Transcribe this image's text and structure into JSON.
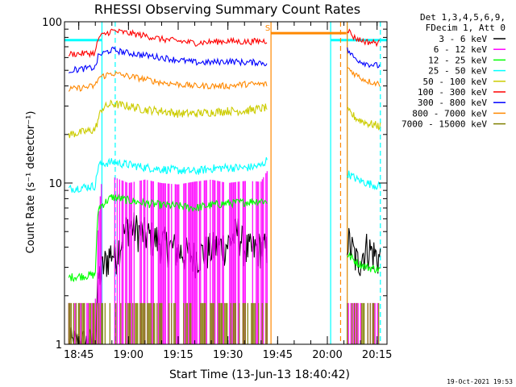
{
  "chart_data": {
    "type": "line",
    "title": "RHESSI Observing Summary Count Rates",
    "xlabel": "Start Time (13-Jun-13 18:40:42)",
    "ylabel": "Count Rate (s⁻¹ detector⁻¹)",
    "yscale": "log",
    "ylim": [
      1,
      100
    ],
    "xlim": [
      "18:40:42",
      "20:18:00"
    ],
    "x_ticks": [
      "18:45",
      "19:00",
      "19:15",
      "19:30",
      "19:45",
      "20:00",
      "20:15"
    ],
    "y_ticks": [
      "1",
      "10",
      "100"
    ],
    "legend": {
      "position": "top-right",
      "header": [
        "Det 1,3,4,5,6,9,",
        "FDecim 1, Att 0"
      ]
    },
    "series": [
      {
        "name": "3 - 6 keV",
        "color": "#000000",
        "segments": [
          {
            "t": [
              "18:42",
              "18:50",
              "18:51",
              "18:55",
              "18:56",
              "19:00",
              "19:05",
              "19:10",
              "19:15",
              "19:20",
              "19:25",
              "19:30",
              "19:33",
              "19:35",
              "19:37",
              "19:40",
              "19:42"
            ],
            "y": [
              1.0,
              1.0,
              2.6,
              3.8,
              3.5,
              5.5,
              4.8,
              4.3,
              3.8,
              3.5,
              3.9,
              4.2,
              5.0,
              4.0,
              3.8,
              4.0,
              3.8
            ]
          },
          {
            "t": [
              "20:06",
              "20:09",
              "20:12",
              "20:15",
              "20:16"
            ],
            "y": [
              4.5,
              3.2,
              4.0,
              3.5,
              3.4
            ]
          }
        ]
      },
      {
        "name": "6 - 12 keV",
        "color": "#ff00ff",
        "segments": [
          {
            "t": [
              "18:42",
              "18:49",
              "18:50",
              "18:52",
              "18:55",
              "19:00",
              "19:05",
              "19:10",
              "19:15",
              "19:20",
              "19:25",
              "19:30",
              "19:35",
              "19:40",
              "19:42"
            ],
            "y": [
              1.8,
              1.8,
              1.8,
              10.5,
              11.0,
              10.0,
              10.5,
              10.0,
              9.8,
              10.2,
              10.5,
              10.0,
              10.3,
              10.2,
              12.0
            ]
          },
          {
            "t": [
              "20:06",
              "20:16"
            ],
            "y": [
              1.8,
              1.8
            ]
          }
        ]
      },
      {
        "name": "12 - 25 keV",
        "color": "#00ff00",
        "segments": [
          {
            "t": [
              "18:42",
              "18:50",
              "18:51",
              "18:55",
              "19:00",
              "19:05",
              "19:10",
              "19:15",
              "19:20",
              "19:25",
              "19:30",
              "19:35",
              "19:40",
              "19:42"
            ],
            "y": [
              2.6,
              2.7,
              7.0,
              8.2,
              7.8,
              7.5,
              7.3,
              7.2,
              7.0,
              7.3,
              7.5,
              7.6,
              7.8,
              7.6
            ]
          },
          {
            "t": [
              "20:06",
              "20:09",
              "20:12",
              "20:16"
            ],
            "y": [
              3.6,
              3.2,
              3.0,
              2.9
            ]
          }
        ]
      },
      {
        "name": "25 - 50 keV",
        "color": "#00ffff",
        "segments": [
          {
            "t": [
              "18:42",
              "18:50",
              "18:51",
              "18:55",
              "19:00",
              "19:05",
              "19:10",
              "19:15",
              "19:20",
              "19:25",
              "19:30",
              "19:35",
              "19:40",
              "19:42"
            ],
            "y": [
              9.2,
              9.6,
              13.0,
              13.5,
              13.0,
              12.5,
              12.2,
              12.0,
              11.8,
              12.3,
              12.5,
              12.4,
              12.8,
              14.0
            ]
          },
          {
            "t": [
              "20:06",
              "20:09",
              "20:12",
              "20:16"
            ],
            "y": [
              11.5,
              10.5,
              10.0,
              9.5
            ]
          }
        ]
      },
      {
        "name": "50 - 100 keV",
        "color": "#cccc00",
        "segments": [
          {
            "t": [
              "18:42",
              "18:48",
              "18:50",
              "18:52",
              "18:55",
              "19:00",
              "19:05",
              "19:10",
              "19:15",
              "19:20",
              "19:25",
              "19:30",
              "19:35",
              "19:40",
              "19:42"
            ],
            "y": [
              20.0,
              21.0,
              21.5,
              29.0,
              31.0,
              30.0,
              28.5,
              28.0,
              27.0,
              27.0,
              27.5,
              28.0,
              28.0,
              29.0,
              29.5
            ]
          },
          {
            "t": [
              "20:06",
              "20:09",
              "20:12",
              "20:16"
            ],
            "y": [
              28.0,
              25.0,
              23.5,
              22.5
            ]
          }
        ]
      },
      {
        "name": "100 - 300 keV",
        "color": "#ff0000",
        "segments": [
          {
            "t": [
              "18:42",
              "18:50",
              "18:51",
              "18:55",
              "19:00",
              "19:05",
              "19:10",
              "19:15",
              "19:20",
              "19:25",
              "19:30",
              "19:35",
              "19:40",
              "19:42"
            ],
            "y": [
              63.0,
              64.0,
              80.0,
              88.0,
              85.0,
              82.0,
              78.0,
              76.0,
              74.0,
              75.0,
              76.0,
              75.0,
              76.0,
              76.0
            ]
          },
          {
            "t": [
              "20:06",
              "20:08",
              "20:10",
              "20:12",
              "20:16"
            ],
            "y": [
              90.0,
              80.0,
              77.0,
              75.0,
              74.0
            ]
          }
        ]
      },
      {
        "name": "300 - 800 keV",
        "color": "#0000ff",
        "segments": [
          {
            "t": [
              "18:42",
              "18:50",
              "18:51",
              "18:55",
              "19:00",
              "19:05",
              "19:10",
              "19:15",
              "19:20",
              "19:25",
              "19:30",
              "19:35",
              "19:40",
              "19:42"
            ],
            "y": [
              50.0,
              52.0,
              62.0,
              67.0,
              64.0,
              62.0,
              60.0,
              58.0,
              56.0,
              56.0,
              57.0,
              56.0,
              56.0,
              55.0
            ]
          },
          {
            "t": [
              "20:06",
              "20:08",
              "20:10",
              "20:12",
              "20:16"
            ],
            "y": [
              67.0,
              60.0,
              57.0,
              55.0,
              53.0
            ]
          }
        ]
      },
      {
        "name": "800 - 7000 keV",
        "color": "#ff8800",
        "segments": [
          {
            "t": [
              "18:42",
              "18:50",
              "18:51",
              "18:55",
              "19:00",
              "19:05",
              "19:10",
              "19:15",
              "19:20",
              "19:25",
              "19:30",
              "19:35",
              "19:40",
              "19:42"
            ],
            "y": [
              38.0,
              40.0,
              45.0,
              48.0,
              46.0,
              44.0,
              42.0,
              41.0,
              40.0,
              40.0,
              40.0,
              41.0,
              41.0,
              41.0
            ]
          },
          {
            "t": [
              "19:43",
              "20:06"
            ],
            "y": [
              85.0,
              85.0
            ]
          },
          {
            "t": [
              "20:06",
              "20:08",
              "20:10",
              "20:12",
              "20:16"
            ],
            "y": [
              52.0,
              48.0,
              45.0,
              43.0,
              41.0
            ]
          }
        ]
      },
      {
        "name": "7000 - 15000 keV",
        "color": "#808000",
        "segments": [
          {
            "t": [
              "18:42",
              "19:42"
            ],
            "y": [
              1.8,
              1.8
            ]
          },
          {
            "t": [
              "20:06",
              "20:16"
            ],
            "y": [
              1.8,
              1.8
            ]
          }
        ]
      }
    ],
    "flags": [
      {
        "type": "solid-bar",
        "color": "#00ffff",
        "from": "18:40:42",
        "to": "18:52",
        "y": 77
      },
      {
        "type": "solid-bar",
        "color": "#00ffff",
        "from": "20:01",
        "to": "20:18",
        "y": 77
      },
      {
        "type": "vline",
        "color": "#00ffff",
        "style": "solid",
        "t": "18:52"
      },
      {
        "type": "vline",
        "color": "#00ffff",
        "style": "dashed",
        "t": "18:56"
      },
      {
        "type": "vline",
        "color": "#00ffff",
        "style": "solid",
        "t": "20:01"
      },
      {
        "type": "vline",
        "color": "#00ffff",
        "style": "solid",
        "t": "20:06"
      },
      {
        "type": "vline",
        "color": "#00ffff",
        "style": "dashed",
        "t": "20:16"
      },
      {
        "type": "vline",
        "color": "#ff8800",
        "style": "solid",
        "t": "19:43"
      },
      {
        "type": "vline",
        "color": "#ff8800",
        "style": "dashed",
        "t": "20:04"
      },
      {
        "type": "vline",
        "color": "#ff8800",
        "style": "solid",
        "t": "20:06"
      }
    ],
    "annotations": [
      {
        "text": "S",
        "color": "#ff8800",
        "t": "19:42",
        "y": 92
      }
    ]
  },
  "footer": {
    "timestamp": "19-Oct-2021 19:53"
  }
}
